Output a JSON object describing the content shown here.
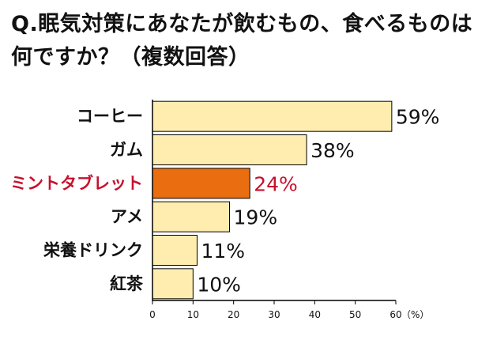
{
  "title": "Q.眠気対策にあなたが飲むもの、食べるものは何ですか？（複数回答）",
  "colors": {
    "bar": "#ffedb0",
    "highlight_bar": "#ea6d10",
    "highlight_text": "#c8102e",
    "text": "#111111"
  },
  "chart_data": {
    "type": "bar",
    "orientation": "horizontal",
    "title": "Q.眠気対策にあなたが飲むもの、食べるものは何ですか？（複数回答）",
    "categories": [
      "コーヒー",
      "ガム",
      "ミントタブレット",
      "アメ",
      "栄養ドリンク",
      "紅茶"
    ],
    "values": [
      59,
      38,
      24,
      19,
      11,
      10
    ],
    "value_labels": [
      "59%",
      "38%",
      "24%",
      "19%",
      "11%",
      "10%"
    ],
    "highlight_index": 2,
    "xlim": [
      0,
      60
    ],
    "xticks": [
      "0",
      "10",
      "20",
      "30",
      "40",
      "50",
      "60"
    ],
    "unit_label": "（%）",
    "grid": false
  }
}
